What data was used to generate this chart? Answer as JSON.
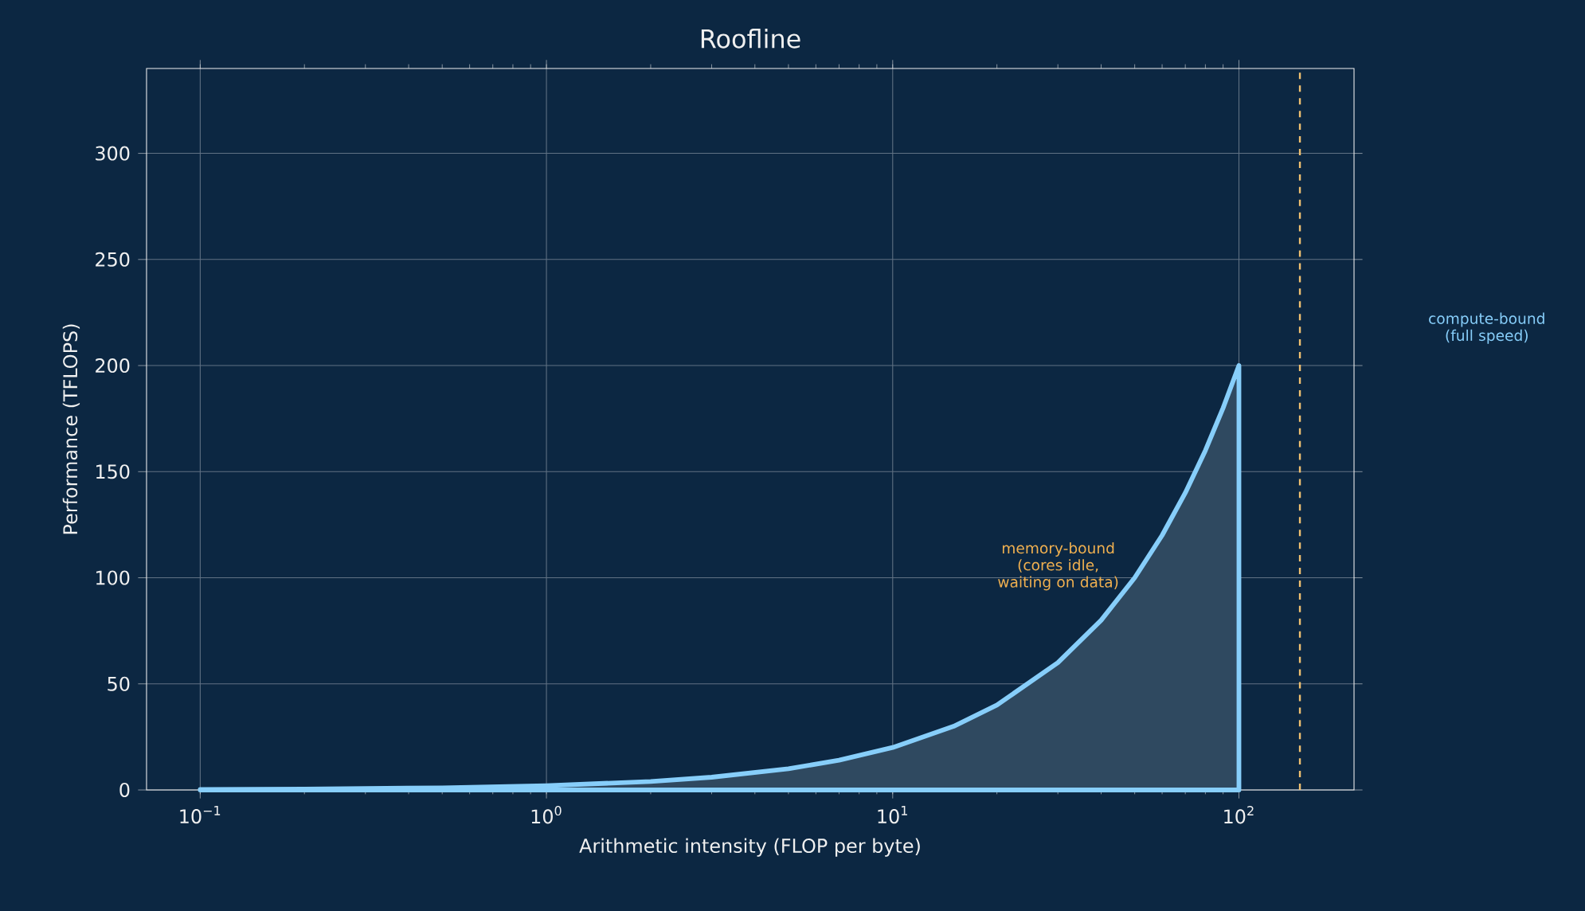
{
  "chart_data": {
    "type": "area",
    "title": "Roofline",
    "xlabel": "Arithmetic intensity (FLOP per byte)",
    "ylabel": "Performance (TFLOPS)",
    "x": [
      0.1,
      0.2,
      0.5,
      1,
      2,
      3,
      5,
      7,
      10,
      15,
      20,
      30,
      40,
      50,
      60,
      70,
      80,
      90,
      100
    ],
    "series": [
      {
        "color": "#87cefa",
        "values": [
          0.2,
          0.4,
          1,
          2,
          4,
          6,
          10,
          14,
          20,
          30,
          40,
          60,
          80,
          100,
          120,
          140,
          160,
          180,
          200
        ]
      }
    ],
    "log": "x",
    "xlim": [
      0.07,
      215
    ],
    "ylim": [
      0,
      340
    ],
    "xticks": [
      {
        "value": 0.1,
        "label": "10$^{−1}$"
      },
      {
        "value": 1,
        "label": "10$^{0}$"
      },
      {
        "value": 10,
        "label": "10$^{1}$"
      },
      {
        "value": 100,
        "label": "10$^{2}$"
      }
    ],
    "yticks": [
      0,
      50,
      100,
      150,
      200,
      250,
      300
    ],
    "grid": true,
    "ref_lines": [
      {
        "axis": "x",
        "value": 150,
        "color": "#f0c070",
        "line_style": "dashed"
      }
    ],
    "annotations": [
      "memory-bound (cores idle, waiting on data)",
      "compute-bound (full speed)"
    ]
  }
}
